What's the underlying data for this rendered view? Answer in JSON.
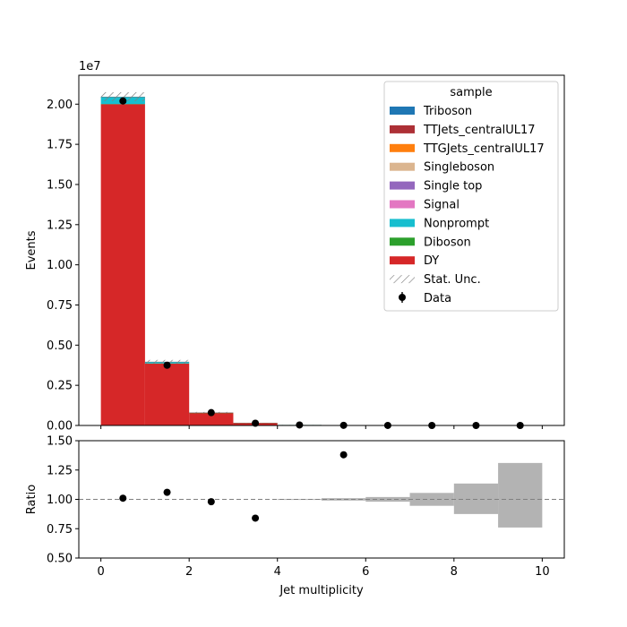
{
  "chart_data": [
    {
      "type": "bar",
      "stacked": true,
      "panel": "main",
      "offset_text": "1e7",
      "ylabel": "Events",
      "xlabel": "",
      "xlim": [
        -0.5,
        10.5
      ],
      "ylim": [
        0,
        2.18
      ],
      "y_ticks": [
        "0.00",
        "0.25",
        "0.50",
        "0.75",
        "1.00",
        "1.25",
        "1.50",
        "1.75",
        "2.00"
      ],
      "y_tick_values": [
        0,
        0.25,
        0.5,
        0.75,
        1.0,
        1.25,
        1.5,
        1.75,
        2.0
      ],
      "bin_edges": [
        0,
        1,
        2,
        3,
        4,
        5,
        6,
        7,
        8,
        9,
        10
      ],
      "series": [
        {
          "name": "DY",
          "color": "#d62728",
          "values": [
            2.0,
            0.385,
            0.078,
            0.015,
            0.003,
            0.0008,
            0.0002,
            5e-05,
            1e-05,
            3e-06
          ]
        },
        {
          "name": "Diboson",
          "color": "#2ca02c",
          "values": [
            0.001,
            0.001,
            0.0003,
            0.0001,
            2e-05,
            1e-05,
            0,
            0,
            0,
            0
          ]
        },
        {
          "name": "Nonprompt",
          "color": "#17becf",
          "values": [
            0.045,
            0.01,
            0.002,
            0.0005,
            0.0001,
            3e-05,
            0,
            0,
            0,
            0
          ]
        },
        {
          "name": "Signal",
          "color": "#e377c2",
          "values": [
            0,
            0,
            0,
            0,
            0,
            0,
            0,
            0,
            0,
            0
          ]
        },
        {
          "name": "Single top",
          "color": "#9467bd",
          "values": [
            0,
            0,
            0,
            0,
            0,
            0,
            0,
            0,
            0,
            0
          ]
        },
        {
          "name": "Singleboson",
          "color": "#dbb58f",
          "values": [
            0,
            0,
            0,
            0,
            0,
            0,
            0,
            0,
            0,
            0
          ]
        },
        {
          "name": "TTGJets_centralUL17",
          "color": "#ff7f0e",
          "values": [
            0,
            0,
            0,
            0,
            0,
            0,
            0,
            0,
            0,
            0
          ]
        },
        {
          "name": "TTJets_centralUL17",
          "color": "#ad3036",
          "values": [
            0.0003,
            0.0003,
            0.0001,
            3e-05,
            0,
            0,
            0,
            0,
            0,
            0
          ]
        },
        {
          "name": "Triboson",
          "color": "#1f77b4",
          "values": [
            0,
            0,
            0,
            0,
            0,
            0,
            0,
            0,
            0,
            0
          ]
        }
      ],
      "stat_unc": [
        0.028,
        0.012,
        0.004,
        0.001,
        0.0003,
        0.0001,
        0,
        0,
        0,
        0
      ],
      "data": {
        "name": "Data",
        "x": [
          0.5,
          1.5,
          2.5,
          3.5,
          4.5,
          5.5,
          6.5,
          7.5,
          8.5,
          9.5
        ],
        "y": [
          2.02,
          0.375,
          0.08,
          0.014,
          0.003,
          0.001,
          0.0002,
          4e-05,
          1e-05,
          3e-06
        ]
      },
      "legend": {
        "title": "sample",
        "placement": "upper right",
        "entries": [
          {
            "label": "Triboson",
            "kind": "patch",
            "color": "#1f77b4"
          },
          {
            "label": "TTJets_centralUL17",
            "kind": "patch",
            "color": "#ad3036"
          },
          {
            "label": "TTGJets_centralUL17",
            "kind": "patch",
            "color": "#ff7f0e"
          },
          {
            "label": "Singleboson",
            "kind": "patch",
            "color": "#dbb58f"
          },
          {
            "label": "Single top",
            "kind": "patch",
            "color": "#9467bd"
          },
          {
            "label": "Signal",
            "kind": "patch",
            "color": "#e377c2"
          },
          {
            "label": "Nonprompt",
            "kind": "patch",
            "color": "#17becf"
          },
          {
            "label": "Diboson",
            "kind": "patch",
            "color": "#2ca02c"
          },
          {
            "label": "DY",
            "kind": "patch",
            "color": "#d62728"
          },
          {
            "label": "Stat. Unc.",
            "kind": "hatch",
            "color": "#7f7f7f"
          },
          {
            "label": "Data",
            "kind": "errorbar",
            "color": "#000000"
          }
        ]
      }
    },
    {
      "type": "scatter",
      "panel": "ratio",
      "ylabel": "Ratio",
      "xlabel": "Jet multiplicity",
      "xlim": [
        -0.5,
        10.5
      ],
      "ylim": [
        0.5,
        1.5
      ],
      "x_ticks": [
        "0",
        "2",
        "4",
        "6",
        "8",
        "10"
      ],
      "x_tick_values": [
        0,
        2,
        4,
        6,
        8,
        10
      ],
      "y_ticks": [
        "0.50",
        "0.75",
        "1.00",
        "1.25",
        "1.50"
      ],
      "y_tick_values": [
        0.5,
        0.75,
        1.0,
        1.25,
        1.5
      ],
      "reference_line": 1.0,
      "points": {
        "x": [
          0.5,
          1.5,
          2.5,
          3.5,
          5.5
        ],
        "y": [
          1.01,
          1.06,
          0.98,
          0.84,
          1.38
        ]
      },
      "unc_band": {
        "bin_edges": [
          0,
          1,
          2,
          3,
          4,
          5,
          6,
          7,
          8,
          9,
          10
        ],
        "low": [
          1.0,
          1.0,
          1.0,
          1.0,
          0.997,
          0.99,
          0.98,
          0.945,
          0.875,
          0.76
        ],
        "high": [
          1.0,
          1.0,
          1.0,
          1.0,
          1.003,
          1.01,
          1.02,
          1.055,
          1.135,
          1.31
        ]
      }
    }
  ]
}
